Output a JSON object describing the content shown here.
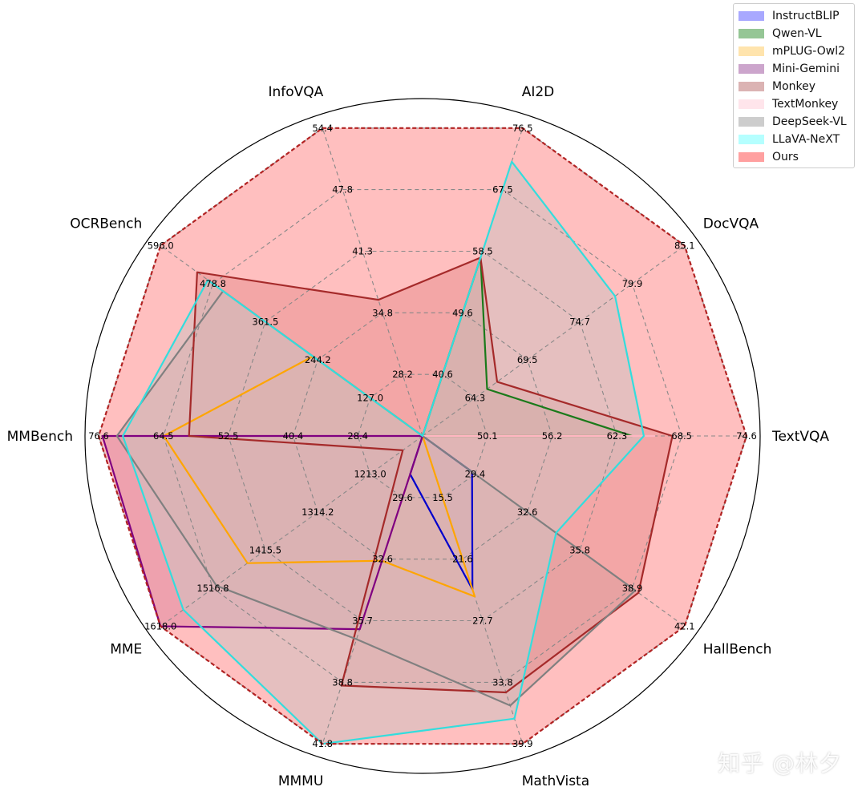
{
  "chart_data": {
    "type": "radar",
    "axes": [
      "TextVQA",
      "DocVQA",
      "AI2D",
      "InfoVQA",
      "OCRBench",
      "MMBench",
      "MME",
      "MMMU",
      "MathVista",
      "HallBench"
    ],
    "axis_ticks": {
      "TextVQA": [
        "50.1",
        "56.2",
        "62.3",
        "68.5",
        "74.6"
      ],
      "DocVQA": [
        "64.3",
        "69.5",
        "74.7",
        "79.9",
        "85.1"
      ],
      "AI2D": [
        "40.6",
        "49.6",
        "58.5",
        "67.5",
        "76.5"
      ],
      "InfoVQA": [
        "28.2",
        "34.8",
        "41.3",
        "47.8",
        "54.4"
      ],
      "OCRBench": [
        "127.0",
        "244.2",
        "361.5",
        "478.8",
        "596.0"
      ],
      "MMBench": [
        "28.4",
        "40.4",
        "52.5",
        "64.5",
        "76.6"
      ],
      "MME": [
        "1213.0",
        "1314.2",
        "1415.5",
        "1516.8",
        "1618.0"
      ],
      "MMMU": [
        "29.6",
        "32.6",
        "35.7",
        "38.8",
        "41.8"
      ],
      "MathVista": [
        "15.5",
        "21.6",
        "27.7",
        "33.8",
        "39.9"
      ],
      "HallBench": [
        "29.4",
        "32.6",
        "35.8",
        "38.9",
        "42.1"
      ]
    },
    "axis_min": {
      "TextVQA": 44.0,
      "DocVQA": 59.1,
      "AI2D": 31.6,
      "InfoVQA": 21.6,
      "OCRBench": 9.7,
      "MMBench": 16.4,
      "MME": 1111.8,
      "MMMU": 26.5,
      "MathVista": 9.4,
      "HallBench": 26.2
    },
    "axis_max": {
      "TextVQA": 74.6,
      "DocVQA": 85.1,
      "AI2D": 76.5,
      "InfoVQA": 54.4,
      "OCRBench": 596.0,
      "MMBench": 76.6,
      "MME": 1618.0,
      "MMMU": 41.8,
      "MathVista": 39.9,
      "HallBench": 42.1
    },
    "series": [
      {
        "name": "InstructBLIP",
        "color": "#0000cc",
        "fill": "#9999ff",
        "fill_opacity": 0.6,
        "values": {
          "TextVQA": 44.0,
          "DocVQA": 59.1,
          "AI2D": 31.6,
          "InfoVQA": 21.6,
          "OCRBench": 9.7,
          "MMBench": 16.4,
          "MME": 1111.8,
          "MMMU": 28.4,
          "MathVista": 24.6,
          "HallBench": 29.2
        }
      },
      {
        "name": "Qwen-VL",
        "color": "#1a7a1a",
        "fill": "#7ab87a",
        "fill_opacity": 0.55,
        "values": {
          "TextVQA": 63.8,
          "DocVQA": 65.5,
          "AI2D": 57.6,
          "InfoVQA": 21.6,
          "OCRBench": 9.7,
          "MMBench": 16.4,
          "MME": 1111.8,
          "MMMU": 26.5,
          "MathVista": 9.4,
          "HallBench": 26.2
        }
      },
      {
        "name": "mPLUG-Owl2",
        "color": "#ffa500",
        "fill": "#ffdd99",
        "fill_opacity": 0.55,
        "values": {
          "TextVQA": 44.0,
          "DocVQA": 59.1,
          "AI2D": 31.6,
          "InfoVQA": 21.6,
          "OCRBench": 255.0,
          "MMBench": 64.5,
          "MME": 1450.0,
          "MMMU": 32.7,
          "MathVista": 25.3,
          "HallBench": 26.2
        }
      },
      {
        "name": "Mini-Gemini",
        "color": "#800080",
        "fill": "#bf8fbf",
        "fill_opacity": 0.55,
        "values": {
          "TextVQA": 44.0,
          "DocVQA": 59.1,
          "AI2D": 31.6,
          "InfoVQA": 21.6,
          "OCRBench": 9.7,
          "MMBench": 75.9,
          "MME": 1618.0,
          "MMMU": 36.1,
          "MathVista": 9.4,
          "HallBench": 26.2
        }
      },
      {
        "name": "Monkey",
        "color": "#a52a2a",
        "fill": "#cf9999",
        "fill_opacity": 0.5,
        "values": {
          "TextVQA": 67.6,
          "DocVQA": 66.5,
          "AI2D": 57.6,
          "InfoVQA": 36.1,
          "OCRBench": 514.0,
          "MMBench": 59.8,
          "MME": 1150.0,
          "MMMU": 38.9,
          "MathVista": 34.8,
          "HallBench": 39.3
        }
      },
      {
        "name": "TextMonkey",
        "color": "#ffb6c1",
        "fill": "#ffe4ea",
        "fill_opacity": 0.7,
        "values": {
          "TextVQA": 65.9,
          "DocVQA": 59.1,
          "AI2D": 31.6,
          "InfoVQA": 21.6,
          "OCRBench": 9.7,
          "MMBench": 16.4,
          "MME": 1111.8,
          "MMMU": 26.5,
          "MathVista": 9.4,
          "HallBench": 26.2
        }
      },
      {
        "name": "DeepSeek-VL",
        "color": "#808080",
        "fill": "#c0c0c0",
        "fill_opacity": 0.55,
        "values": {
          "TextVQA": 44.0,
          "DocVQA": 59.1,
          "AI2D": 31.6,
          "InfoVQA": 21.6,
          "OCRBench": 456.0,
          "MMBench": 73.2,
          "MME": 1510.0,
          "MMMU": 36.6,
          "MathVista": 36.1,
          "HallBench": 39.1
        }
      },
      {
        "name": "LLaVA-NeXT",
        "color": "#33dddd",
        "fill": "#a8ffff",
        "fill_opacity": 0.6,
        "values": {
          "TextVQA": 64.9,
          "DocVQA": 78.2,
          "AI2D": 71.6,
          "InfoVQA": 21.6,
          "OCRBench": 490.0,
          "MMBench": 72.1,
          "MME": 1574.0,
          "MMMU": 41.8,
          "MathVista": 37.4,
          "HallBench": 34.3
        }
      },
      {
        "name": "Ours",
        "color": "#b22222",
        "fill": "#ff8080",
        "fill_opacity": 0.5,
        "dashed": true,
        "values": {
          "TextVQA": 74.6,
          "DocVQA": 85.1,
          "AI2D": 76.5,
          "InfoVQA": 54.4,
          "OCRBench": 596.0,
          "MMBench": 76.6,
          "MME": 1618.0,
          "MMMU": 41.8,
          "MathVista": 39.9,
          "HallBench": 42.1
        }
      }
    ],
    "legend_position": "top-right",
    "grid": true
  },
  "watermark": "知乎 @林夕"
}
